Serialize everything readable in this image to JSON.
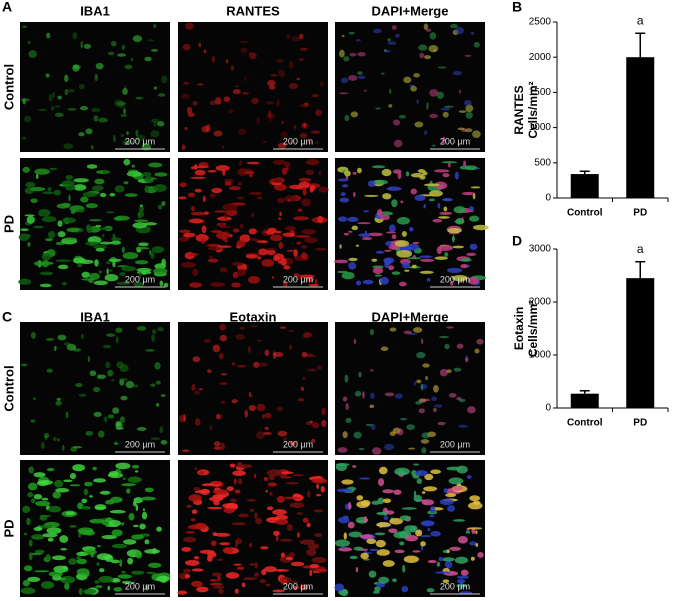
{
  "panels": [
    {
      "letter": "A",
      "columns": [
        "IBA1",
        "RANTES",
        "DAPI+Merge"
      ],
      "rows": [
        "Control",
        "PD"
      ],
      "scale_bar": "200 µm"
    },
    {
      "letter": "C",
      "columns": [
        "IBA1",
        "Eotaxin",
        "DAPI+Merge"
      ],
      "rows": [
        "Control",
        "PD"
      ],
      "scale_bar": "200 µm"
    }
  ],
  "chart_data": [
    {
      "type": "bar",
      "panel": "B",
      "y_label": [
        "RANTES",
        "Cells/mm²"
      ],
      "categories": [
        "Control",
        "PD"
      ],
      "values": [
        340,
        2000
      ],
      "errors": [
        40,
        340
      ],
      "color": "#000000",
      "annotation": "a",
      "ylim": [
        0,
        2500
      ],
      "yticks": [
        0,
        500,
        1000,
        1500,
        2000,
        2500
      ]
    },
    {
      "type": "bar",
      "panel": "D",
      "y_label": [
        "Eotaxin",
        "Cells/mm²"
      ],
      "categories": [
        "Control",
        "PD"
      ],
      "values": [
        270,
        2450
      ],
      "errors": [
        55,
        310
      ],
      "color": "#000000",
      "annotation": "a",
      "ylim": [
        0,
        3000
      ],
      "yticks": [
        0,
        1000,
        2000,
        3000
      ]
    }
  ]
}
